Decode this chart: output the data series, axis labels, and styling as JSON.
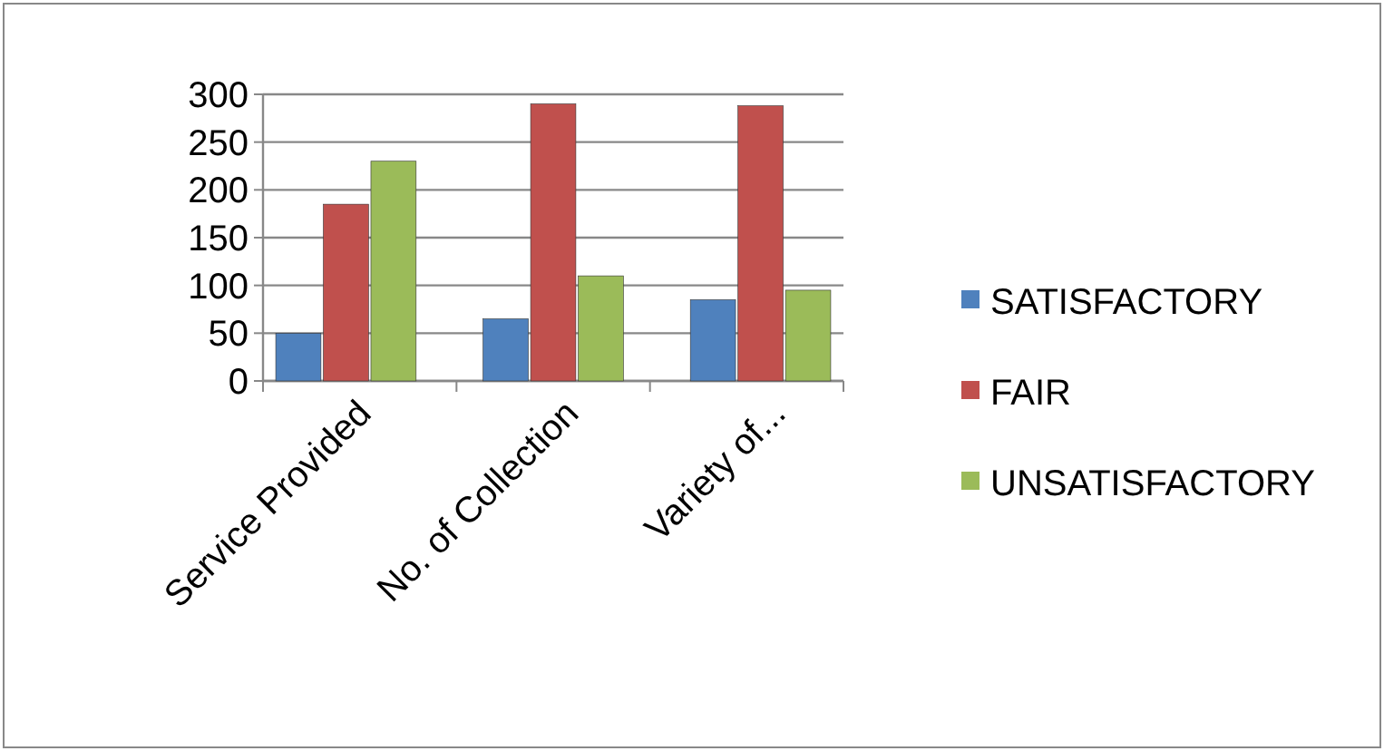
{
  "chart_data": {
    "type": "bar",
    "categories": [
      "Service Provided",
      "No. of Collection",
      "Variety of..."
    ],
    "series": [
      {
        "name": "SATISFACTORY",
        "color": "#4f81bd",
        "values": [
          50,
          65,
          85
        ]
      },
      {
        "name": "FAIR",
        "color": "#c0504d",
        "values": [
          185,
          290,
          288
        ]
      },
      {
        "name": "UNSATISFACTORY",
        "color": "#9bbb59",
        "values": [
          230,
          110,
          95
        ]
      }
    ],
    "ylim": [
      0,
      300
    ],
    "yticks": [
      0,
      50,
      100,
      150,
      200,
      250,
      300
    ],
    "grid": "y",
    "legend": "right"
  }
}
